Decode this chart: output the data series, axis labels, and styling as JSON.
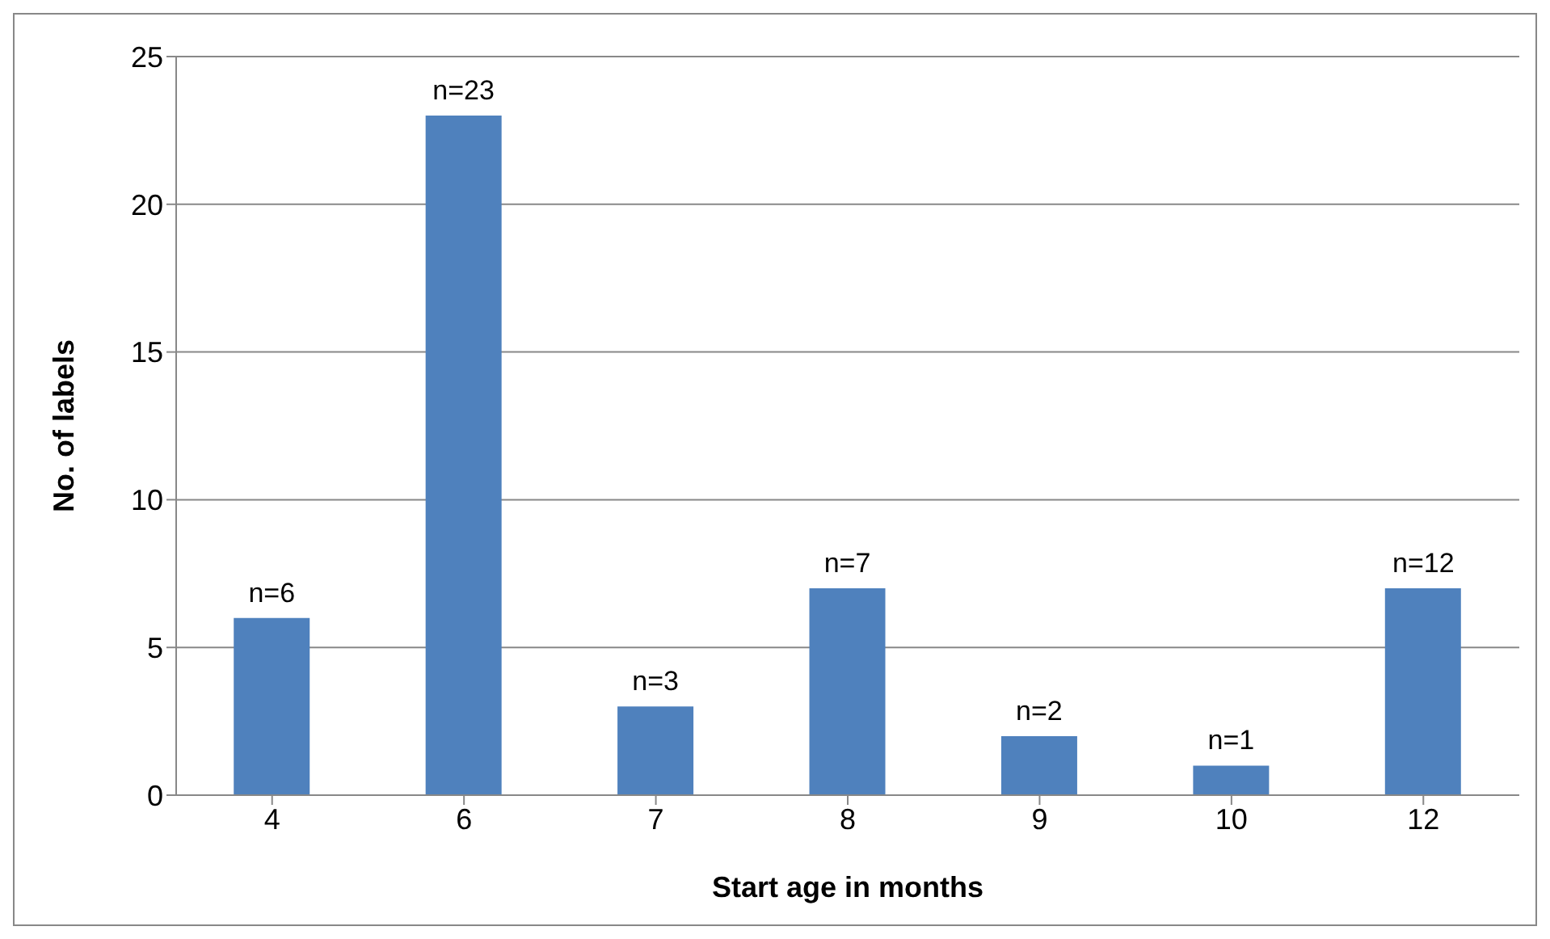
{
  "chart_data": {
    "type": "bar",
    "xlabel": "Start age in months",
    "ylabel": "No. of labels",
    "categories": [
      "4",
      "6",
      "7",
      "8",
      "9",
      "10",
      "12"
    ],
    "values": [
      6,
      23,
      3,
      7,
      2,
      1,
      7
    ],
    "value_labels": [
      "n=6",
      "n=23",
      "n=3",
      "n=7",
      "n=2",
      "n=1",
      null
    ],
    "annotations": [
      {
        "text": "n=12",
        "x": "12",
        "y": 7
      }
    ],
    "color": "#4f81bd",
    "ylim": [
      0,
      25
    ],
    "yticks": [
      0,
      5,
      10,
      15,
      20,
      25
    ],
    "grid": "y"
  }
}
